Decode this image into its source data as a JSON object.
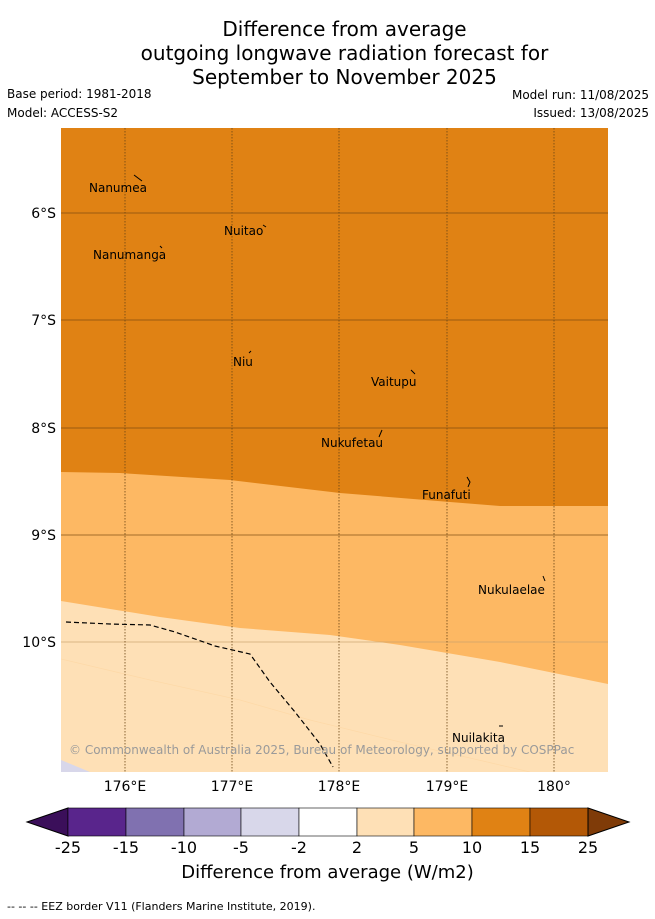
{
  "header": {
    "title_lines": [
      "Difference from average",
      "outgoing longwave radiation forecast for",
      "September to November 2025"
    ],
    "base_period": "Base period: 1981-2018",
    "model": "Model: ACCESS-S2",
    "model_run": "Model run: 11/08/2025",
    "issued": "Issued: 13/08/2025"
  },
  "map": {
    "lat_labels": [
      "6°S",
      "7°S",
      "8°S",
      "9°S",
      "10°S"
    ],
    "lon_labels": [
      "176°E",
      "177°E",
      "178°E",
      "179°E",
      "180°"
    ],
    "places": [
      {
        "name": "Nanumea"
      },
      {
        "name": "Nuitao"
      },
      {
        "name": "Nanumanga"
      },
      {
        "name": "Niu"
      },
      {
        "name": "Vaitupu"
      },
      {
        "name": "Nukufetau"
      },
      {
        "name": "Funafuti"
      },
      {
        "name": "Nukulaelae"
      },
      {
        "name": "Nuilakita"
      }
    ],
    "credit": "© Commonwealth of Australia 2025, Bureau of Meteorology, supported by COSPPac"
  },
  "colorbar": {
    "ticks": [
      "-25",
      "-15",
      "-10",
      "-5",
      "-2",
      "2",
      "5",
      "10",
      "15",
      "25"
    ],
    "colors": [
      "#3b0f5a",
      "#59258c",
      "#8071b0",
      "#b2aad3",
      "#d8d7ea",
      "#ffffff",
      "#fee0b6",
      "#fdb863",
      "#e08214",
      "#b35806",
      "#7f3b08"
    ],
    "label": "Difference from average (W/m2)"
  },
  "footer": "--  --  -- EEZ border V11 (Flanders Marine Institute, 2019)."
}
